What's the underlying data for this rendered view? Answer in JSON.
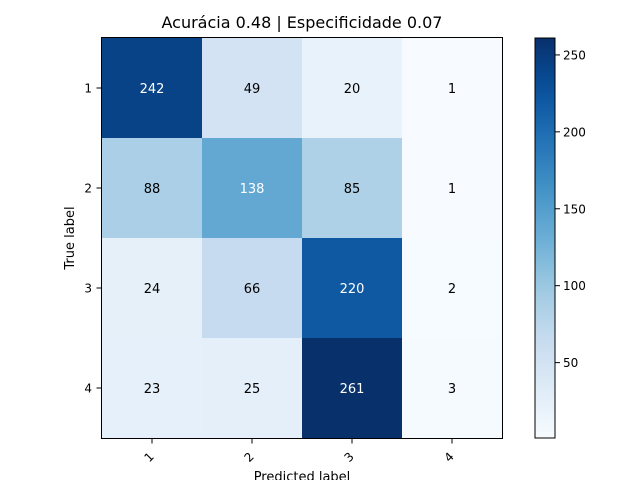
{
  "chart_data": {
    "type": "heatmap",
    "title": "Acurácia 0.48 | Especificidade 0.07",
    "xlabel": "Predicted label",
    "ylabel": "True label",
    "x_categories": [
      "1",
      "2",
      "3",
      "4"
    ],
    "y_categories": [
      "1",
      "2",
      "3",
      "4"
    ],
    "matrix": [
      [
        242,
        49,
        20,
        1
      ],
      [
        88,
        138,
        85,
        1
      ],
      [
        24,
        66,
        220,
        2
      ],
      [
        23,
        25,
        261,
        3
      ]
    ],
    "colorbar": {
      "ticks": [
        50,
        100,
        150,
        200,
        250
      ],
      "range": [
        1,
        261
      ],
      "colormap": "Blues"
    },
    "grid": false
  }
}
